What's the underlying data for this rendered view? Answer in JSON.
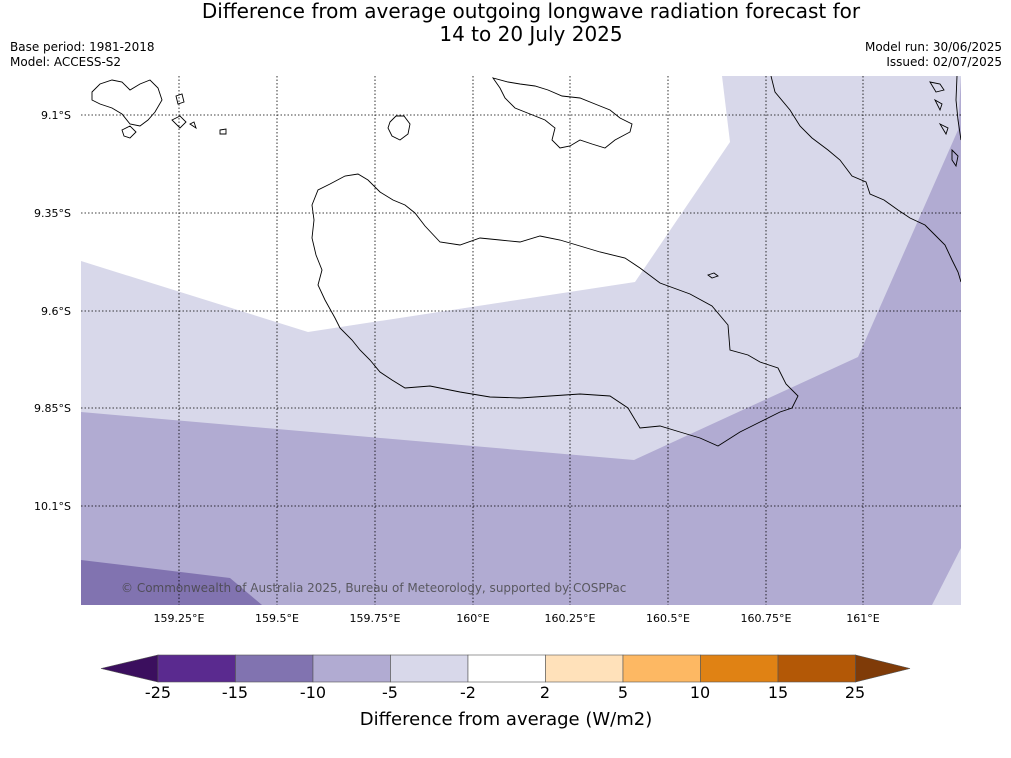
{
  "title_line1": "Difference from average outgoing longwave radiation forecast for",
  "title_line2": "14 to 20 July 2025",
  "base_period": "Base period: 1981-2018",
  "model": "Model: ACCESS-S2",
  "model_run": "Model run: 30/06/2025",
  "issued": "Issued: 02/07/2025",
  "copyright": "© Commonwealth of Australia 2025, Bureau of Meteorology, supported by COSPPac",
  "latitude_labels": [
    "9.1°S",
    "9.35°S",
    "9.6°S",
    "9.85°S",
    "10.1°S"
  ],
  "longitude_labels": [
    "159.25°E",
    "159.5°E",
    "159.75°E",
    "160°E",
    "160.25°E",
    "160.5°E",
    "160.75°E",
    "161°E"
  ],
  "colorbar": {
    "title": "Difference from average (W/m2)",
    "tick_labels": [
      "-25",
      "-15",
      "-10",
      "-5",
      "-2",
      "2",
      "5",
      "10",
      "15",
      "25"
    ],
    "colors": {
      "below_-25": "#3b0f5e",
      "-25_-15": "#5a2a8f",
      "-15_-10": "#8173b0",
      "-10_-5": "#b1abd2",
      "-5_-2": "#d8d8ea",
      "-2_2": "#ffffff",
      "2_5": "#ffe1ba",
      "5_10": "#fdb863",
      "10_15": "#e08214",
      "15_25": "#b35806",
      "above_25": "#7f3b08"
    }
  }
}
